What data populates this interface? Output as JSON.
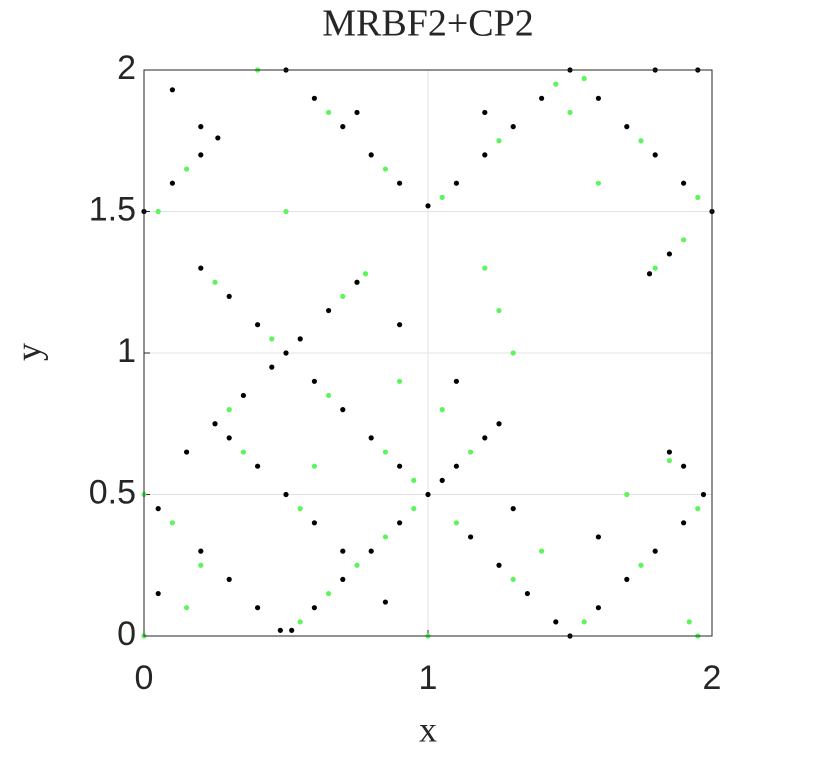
{
  "chart_data": {
    "type": "scatter",
    "title": "MRBF2+CP2",
    "xlabel": "x",
    "ylabel": "y",
    "xlim": [
      0,
      2
    ],
    "ylim": [
      0,
      2
    ],
    "xticks": [
      0,
      1,
      2
    ],
    "yticks": [
      0,
      0.5,
      1,
      1.5,
      2
    ],
    "grid": true,
    "series": [
      {
        "color": "#5cf55c",
        "x": [
          0.55,
          0.65,
          0.75,
          0.85,
          0.95,
          1.15,
          0.25,
          0.45,
          0.65,
          0.85,
          0.95,
          0.3,
          0.5,
          0.7,
          0.78,
          0.2,
          0.1,
          0.0,
          0.35,
          0.55,
          1.1,
          1.3,
          1.55,
          1.75,
          1.95,
          1.85,
          1.0,
          1.95,
          0.4,
          0.65,
          0.85,
          1.05,
          1.25,
          1.45,
          1.55,
          1.75,
          1.95,
          1.9,
          1.8,
          0.05,
          0.15,
          0.5,
          1.2,
          1.25,
          1.3,
          1.05,
          0.9,
          1.6,
          1.5,
          0.0,
          0.15,
          1.7,
          1.4,
          0.6,
          1.92
        ],
        "values": [
          0.05,
          0.15,
          0.25,
          0.35,
          0.45,
          0.65,
          1.25,
          1.05,
          0.85,
          0.65,
          0.55,
          0.8,
          1.0,
          1.2,
          1.28,
          0.25,
          0.4,
          0.5,
          0.65,
          0.45,
          0.4,
          0.2,
          0.05,
          0.25,
          0.45,
          0.62,
          0.0,
          0.0,
          2.0,
          1.85,
          1.65,
          1.55,
          1.75,
          1.95,
          1.97,
          1.75,
          1.55,
          1.4,
          1.3,
          1.5,
          1.65,
          1.5,
          1.3,
          1.15,
          1.0,
          0.8,
          0.9,
          1.6,
          1.85,
          0.0,
          0.1,
          0.5,
          0.3,
          0.6,
          0.05
        ]
      },
      {
        "color": "#000000",
        "x": [
          0.52,
          0.6,
          0.7,
          0.8,
          0.9,
          1.0,
          1.05,
          1.1,
          1.2,
          1.25,
          0.2,
          0.3,
          0.4,
          0.5,
          0.6,
          0.7,
          0.8,
          0.9,
          0.15,
          0.25,
          0.35,
          0.45,
          0.55,
          0.65,
          0.75,
          0.3,
          0.4,
          0.5,
          0.6,
          0.7,
          0.05,
          0.2,
          0.3,
          0.4,
          0.48,
          1.15,
          1.25,
          1.35,
          1.45,
          1.5,
          1.6,
          1.7,
          1.8,
          1.9,
          1.97,
          1.9,
          1.85,
          0.5,
          0.6,
          0.7,
          0.8,
          0.9,
          1.0,
          1.1,
          1.2,
          1.3,
          1.4,
          1.5,
          1.6,
          1.7,
          1.8,
          1.9,
          2.0,
          1.85,
          1.78,
          0.0,
          0.1,
          0.2,
          0.1,
          0.2,
          0.26,
          1.1,
          0.9,
          1.3,
          1.8,
          1.95,
          0.05,
          0.85,
          1.6,
          0.75,
          1.2
        ],
        "values": [
          0.02,
          0.1,
          0.2,
          0.3,
          0.4,
          0.5,
          0.55,
          0.6,
          0.7,
          0.75,
          1.3,
          1.2,
          1.1,
          1.0,
          0.9,
          0.8,
          0.7,
          0.6,
          0.65,
          0.75,
          0.85,
          0.95,
          1.05,
          1.15,
          1.25,
          0.7,
          0.6,
          0.5,
          0.4,
          0.3,
          0.45,
          0.3,
          0.2,
          0.1,
          0.02,
          0.35,
          0.25,
          0.15,
          0.05,
          0.0,
          0.1,
          0.2,
          0.3,
          0.4,
          0.5,
          0.6,
          0.65,
          2.0,
          1.9,
          1.8,
          1.7,
          1.6,
          1.52,
          1.6,
          1.7,
          1.8,
          1.9,
          2.0,
          1.9,
          1.8,
          1.7,
          1.6,
          1.5,
          1.35,
          1.28,
          1.5,
          1.6,
          1.7,
          1.93,
          1.8,
          1.76,
          0.9,
          1.1,
          0.45,
          2.0,
          2.0,
          0.15,
          0.12,
          0.35,
          1.85,
          1.85
        ]
      }
    ]
  }
}
